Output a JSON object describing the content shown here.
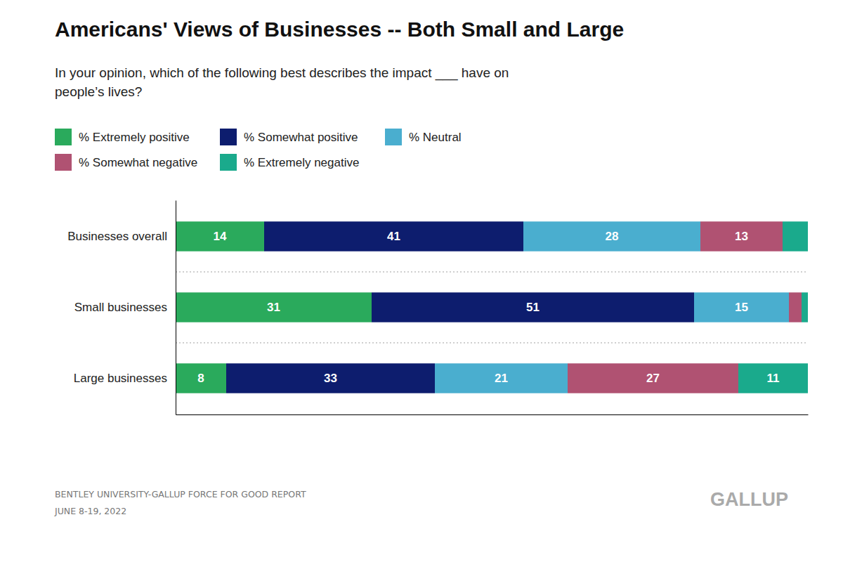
{
  "chart_data": {
    "type": "bar",
    "orientation": "horizontal",
    "stacked": true,
    "title": "Americans' Views of Businesses -- Both Small and Large",
    "subtitle": [
      "In your opinion, which of the following best describes the impact ___ have on",
      "people’s lives?"
    ],
    "categories": [
      "Businesses overall",
      "Small businesses",
      "Large businesses"
    ],
    "series": [
      {
        "name": "% Extremely positive",
        "color": "#2aaa5c",
        "values": [
          14,
          31,
          8
        ]
      },
      {
        "name": "% Somewhat positive",
        "color": "#0d1d6e",
        "values": [
          41,
          51,
          33
        ]
      },
      {
        "name": "% Neutral",
        "color": "#4aaecf",
        "values": [
          28,
          15,
          21
        ]
      },
      {
        "name": "% Somewhat negative",
        "color": "#b05272",
        "values": [
          13,
          2,
          27
        ],
        "value_labels": [
          "13",
          null,
          "27"
        ]
      },
      {
        "name": "% Extremely negative",
        "color": "#1aaa8c",
        "values": [
          4,
          1,
          11
        ],
        "value_labels": [
          null,
          null,
          "11"
        ]
      }
    ],
    "xlim": [
      0,
      100
    ],
    "tick_labels": "y",
    "grid": false,
    "legend": "top-left",
    "data_labels": true,
    "annotations": [
      "BENTLEY UNIVERSITY-GALLUP FORCE FOR GOOD REPORT",
      "JUNE 8-19, 2022",
      "GALLUP"
    ]
  }
}
